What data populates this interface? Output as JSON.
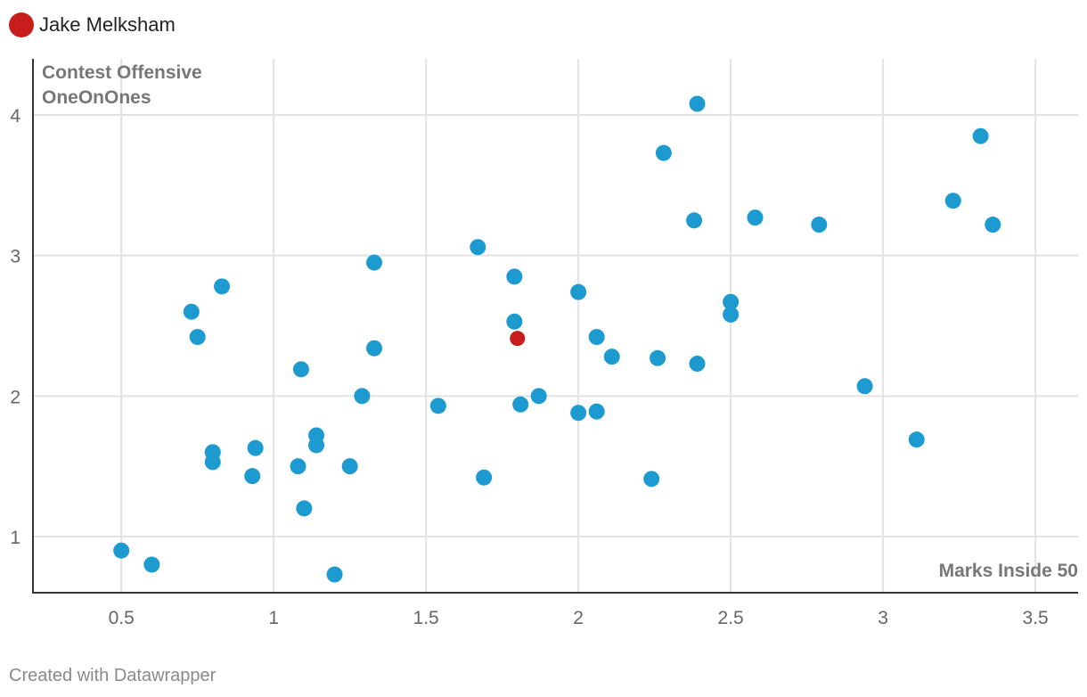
{
  "legend": {
    "label": "Jake Melksham",
    "color": "#c71e1d"
  },
  "credit": "Created with Datawrapper",
  "colors": {
    "default_point": "#1d9bd0",
    "highlight_point": "#c71e1d",
    "grid": "#e2e2e2",
    "axis": "#333333"
  },
  "chart_data": {
    "type": "scatter",
    "xlabel": "Marks Inside 50",
    "ylabel_lines": [
      "Contest Offensive",
      "OneOnOnes"
    ],
    "xlim": [
      0.21,
      3.64
    ],
    "ylim": [
      0.6,
      4.4
    ],
    "xticks": [
      0.5,
      1,
      1.5,
      2,
      2.5,
      3,
      3.5
    ],
    "xtick_labels": [
      "0.5",
      "1",
      "1.5",
      "2",
      "2.5",
      "3",
      "3.5"
    ],
    "yticks": [
      1,
      2,
      3,
      4
    ],
    "ytick_labels": [
      "1",
      "2",
      "3",
      "4"
    ],
    "grid": true,
    "legend_position": "top-left",
    "series": [
      {
        "role": "others",
        "points": [
          [
            0.5,
            0.9
          ],
          [
            0.6,
            0.8
          ],
          [
            1.2,
            0.73
          ],
          [
            1.1,
            1.2
          ],
          [
            0.73,
            2.6
          ],
          [
            0.75,
            2.42
          ],
          [
            0.83,
            2.78
          ],
          [
            0.8,
            1.6
          ],
          [
            0.8,
            1.53
          ],
          [
            0.93,
            1.43
          ],
          [
            0.94,
            1.63
          ],
          [
            1.08,
            1.5
          ],
          [
            1.09,
            2.19
          ],
          [
            1.14,
            1.72
          ],
          [
            1.14,
            1.65
          ],
          [
            1.25,
            1.5
          ],
          [
            1.29,
            2.0
          ],
          [
            1.33,
            2.95
          ],
          [
            1.33,
            2.34
          ],
          [
            1.54,
            1.93
          ],
          [
            1.67,
            3.06
          ],
          [
            1.69,
            1.42
          ],
          [
            1.79,
            2.85
          ],
          [
            1.79,
            2.53
          ],
          [
            1.81,
            1.94
          ],
          [
            1.87,
            2.0
          ],
          [
            2.0,
            2.74
          ],
          [
            2.0,
            1.88
          ],
          [
            2.06,
            2.42
          ],
          [
            2.06,
            1.89
          ],
          [
            2.11,
            2.28
          ],
          [
            2.24,
            1.41
          ],
          [
            2.26,
            2.27
          ],
          [
            2.28,
            3.73
          ],
          [
            2.38,
            3.25
          ],
          [
            2.39,
            4.08
          ],
          [
            2.39,
            2.23
          ],
          [
            2.5,
            2.67
          ],
          [
            2.5,
            2.58
          ],
          [
            2.58,
            3.27
          ],
          [
            2.79,
            3.22
          ],
          [
            2.94,
            2.07
          ],
          [
            3.11,
            1.69
          ],
          [
            3.23,
            3.39
          ],
          [
            3.32,
            3.85
          ],
          [
            3.36,
            3.22
          ]
        ]
      },
      {
        "name": "Jake Melksham",
        "role": "highlight",
        "points": [
          [
            1.8,
            2.41
          ]
        ]
      }
    ]
  }
}
